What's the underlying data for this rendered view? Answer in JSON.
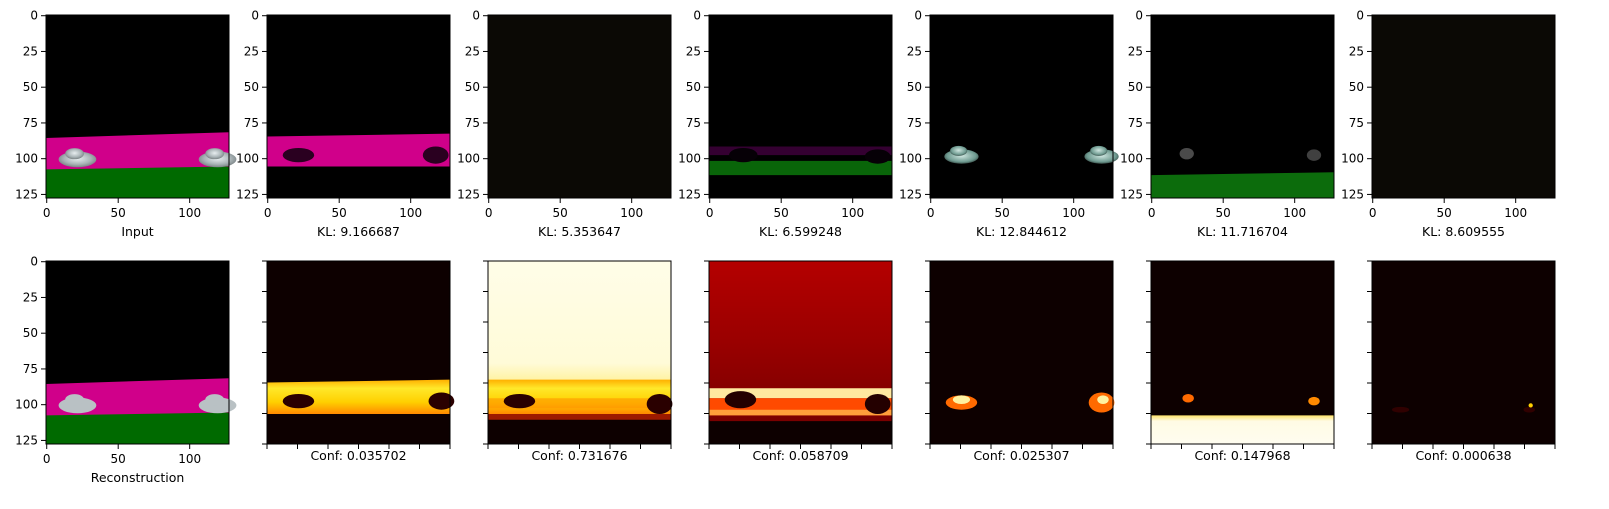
{
  "chart_data": {
    "type": "image-grid",
    "layout": {
      "rows": 2,
      "cols": 7
    },
    "axes": {
      "x_ticks": [
        0,
        50,
        100
      ],
      "y_ticks": [
        0,
        25,
        50,
        75,
        100,
        125
      ],
      "xlim": [
        0,
        127
      ],
      "ylim": [
        127,
        0
      ]
    },
    "top_row": [
      {
        "caption": "Input",
        "kind": "rgb-scene"
      },
      {
        "caption": "KL: 9.166687",
        "kind": "rgb-component",
        "tint": "magenta-band"
      },
      {
        "caption": "KL: 5.353647",
        "kind": "rgb-component",
        "tint": "near-black"
      },
      {
        "caption": "KL: 6.599248",
        "kind": "rgb-component",
        "tint": "green-band"
      },
      {
        "caption": "KL: 12.844612",
        "kind": "rgb-component",
        "tint": "cars"
      },
      {
        "caption": "KL: 11.716704",
        "kind": "rgb-component",
        "tint": "ground"
      },
      {
        "caption": "KL: 8.609555",
        "kind": "rgb-component",
        "tint": "near-black"
      }
    ],
    "bottom_row": [
      {
        "caption": "Reconstruction",
        "kind": "rgb-scene"
      },
      {
        "caption": "Conf: 0.035702",
        "kind": "heatmap",
        "pattern": "road-band"
      },
      {
        "caption": "Conf: 0.731676",
        "kind": "heatmap",
        "pattern": "sky-bright"
      },
      {
        "caption": "Conf: 0.058709",
        "kind": "heatmap",
        "pattern": "red-full"
      },
      {
        "caption": "Conf: 0.025307",
        "kind": "heatmap",
        "pattern": "cars"
      },
      {
        "caption": "Conf: 0.147968",
        "kind": "heatmap",
        "pattern": "ground"
      },
      {
        "caption": "Conf: 0.000638",
        "kind": "heatmap",
        "pattern": "faint"
      }
    ],
    "colors": {
      "magenta": "#d0008a",
      "green": "#006a00",
      "sky": "#000000",
      "heat_dark": "#0d0000",
      "heat_red": "#b00000",
      "heat_orange": "#ff7a00",
      "heat_yellow": "#ffe600",
      "heat_white": "#fffbe6"
    }
  }
}
